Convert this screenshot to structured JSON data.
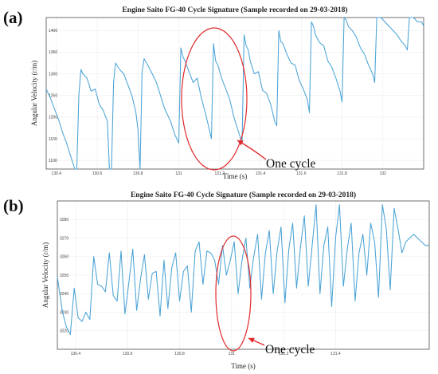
{
  "chart_data": [
    {
      "panel_label": "(a)",
      "type": "line",
      "title": "Engine Saito FG-40 Cycle Signature (Sample recorded on 29-03-2018)",
      "xlabel": "Time (s)",
      "ylabel": "Angular Velocity (r/m)",
      "xlim": [
        130.35,
        132.2
      ],
      "ylim": [
        1080,
        1430
      ],
      "xticks": [
        130.4,
        130.6,
        130.8,
        131,
        131.2,
        131.4,
        131.6,
        131.8,
        132
      ],
      "xtick_labels": [
        "130.4",
        "130.6",
        "130.8",
        "131",
        "131.2",
        "131.4",
        "131.6",
        "131.8",
        "132"
      ],
      "yticks": [
        1100,
        1150,
        1200,
        1250,
        1300,
        1350,
        1400
      ],
      "ytick_labels": [
        "1100",
        "1150",
        "1200",
        "1250",
        "1300",
        "1350",
        "1400"
      ],
      "grid": true,
      "series": [
        {
          "color": "#4aa3d6",
          "x": [
            130.35,
            130.37,
            130.39,
            130.41,
            130.43,
            130.45,
            130.47,
            130.49,
            130.5,
            130.51,
            130.52,
            130.53,
            130.55,
            130.57,
            130.59,
            130.61,
            130.63,
            130.65,
            130.66,
            130.67,
            130.68,
            130.69,
            130.71,
            130.73,
            130.75,
            130.77,
            130.79,
            130.8,
            130.81,
            130.82,
            130.83,
            130.85,
            130.87,
            130.89,
            130.91,
            130.93,
            130.96,
            130.98,
            131,
            131.01,
            131.02,
            131.03,
            131.05,
            131.07,
            131.09,
            131.11,
            131.13,
            131.15,
            131.16,
            131.17,
            131.18,
            131.19,
            131.21,
            131.23,
            131.25,
            131.27,
            131.29,
            131.31,
            131.32,
            131.33,
            131.34,
            131.35,
            131.37,
            131.39,
            131.41,
            131.43,
            131.45,
            131.47,
            131.48,
            131.49,
            131.5,
            131.51,
            131.53,
            131.55,
            131.57,
            131.59,
            131.61,
            131.63,
            131.64,
            131.65,
            131.66,
            131.67,
            131.69,
            131.71,
            131.73,
            131.75,
            131.77,
            131.79,
            131.8,
            131.81,
            131.82,
            131.83,
            131.85,
            131.87,
            131.89,
            131.91,
            131.93,
            131.95,
            131.96,
            131.97,
            131.98,
            131.99,
            132.01,
            132.03,
            132.05,
            132.07,
            132.09,
            132.11,
            132.12,
            132.13,
            132.14,
            132.15,
            132.17,
            132.19,
            132.2
          ],
          "y": [
            1265,
            1245,
            1220,
            1195,
            1165,
            1140,
            1110,
            1080,
            1080,
            1250,
            1310,
            1300,
            1290,
            1260,
            1265,
            1230,
            1215,
            1190,
            1080,
            1080,
            1280,
            1325,
            1310,
            1300,
            1275,
            1250,
            1210,
            1170,
            1080,
            1305,
            1335,
            1318,
            1300,
            1280,
            1250,
            1220,
            1190,
            1160,
            1140,
            1360,
            1340,
            1330,
            1305,
            1280,
            1290,
            1245,
            1210,
            1170,
            1150,
            1370,
            1330,
            1322,
            1290,
            1265,
            1240,
            1200,
            1170,
            1140,
            1390,
            1365,
            1355,
            1330,
            1300,
            1305,
            1262,
            1255,
            1230,
            1190,
            1180,
            1400,
            1375,
            1370,
            1345,
            1325,
            1320,
            1285,
            1265,
            1240,
            1210,
            1420,
            1410,
            1390,
            1372,
            1365,
            1330,
            1315,
            1290,
            1260,
            1235,
            1430,
            1425,
            1410,
            1400,
            1385,
            1360,
            1345,
            1320,
            1300,
            1280,
            1430,
            1430,
            1430,
            1420,
            1410,
            1400,
            1390,
            1375,
            1365,
            1355,
            1430,
            1430,
            1430,
            1420,
            1420,
            1410
          ]
        }
      ],
      "annotation": {
        "text": "One cycle"
      }
    },
    {
      "panel_label": "(b)",
      "type": "line",
      "title": "Engine Saito FG-40 Cycle Signature (Sample recorded on 29-03-2018)",
      "xlabel": "Time (s)",
      "ylabel": "Angular Velocity (r/m)",
      "xlim": [
        130.33,
        131.76
      ],
      "ylim": [
        3210,
        3290
      ],
      "xticks": [
        130.4,
        130.6,
        130.8,
        131,
        131.2,
        131.4
      ],
      "xtick_labels": [
        "130.4",
        "130.6",
        "130.8",
        "131",
        "131.2",
        "131.4"
      ],
      "yticks": [
        3220,
        3230,
        3240,
        3250,
        3260,
        3270,
        3280
      ],
      "ytick_labels": [
        "3220",
        "3230",
        "3240",
        "3250",
        "3260",
        "3270",
        "3280"
      ],
      "grid": true,
      "series": [
        {
          "color": "#4aa3d6",
          "x": [
            130.33,
            130.35,
            130.365,
            130.38,
            130.395,
            130.41,
            130.425,
            130.44,
            130.455,
            130.47,
            130.485,
            130.5,
            130.515,
            130.53,
            130.545,
            130.56,
            130.575,
            130.59,
            130.605,
            130.62,
            130.635,
            130.65,
            130.665,
            130.68,
            130.695,
            130.71,
            130.725,
            130.74,
            130.755,
            130.77,
            130.785,
            130.8,
            130.815,
            130.83,
            130.845,
            130.86,
            130.875,
            130.89,
            130.905,
            130.92,
            130.935,
            130.95,
            130.965,
            130.98,
            130.995,
            131.01,
            131.025,
            131.04,
            131.055,
            131.07,
            131.085,
            131.1,
            131.115,
            131.13,
            131.145,
            131.16,
            131.175,
            131.19,
            131.205,
            131.22,
            131.235,
            131.25,
            131.265,
            131.28,
            131.295,
            131.31,
            131.325,
            131.34,
            131.355,
            131.37,
            131.385,
            131.4,
            131.415,
            131.43,
            131.445,
            131.46,
            131.475,
            131.49,
            131.505,
            131.52,
            131.535,
            131.55,
            131.565,
            131.58,
            131.595,
            131.61,
            131.625,
            131.64,
            131.655,
            131.67,
            131.685,
            131.7,
            131.715,
            131.73,
            131.745,
            131.76
          ],
          "y": [
            3249,
            3230,
            3222,
            3218,
            3243,
            3227,
            3225,
            3230,
            3226,
            3260,
            3245,
            3244,
            3241,
            3262,
            3239,
            3236,
            3263,
            3229,
            3246,
            3264,
            3231,
            3248,
            3261,
            3237,
            3251,
            3252,
            3228,
            3258,
            3232,
            3254,
            3262,
            3236,
            3252,
            3255,
            3230,
            3263,
            3268,
            3245,
            3263,
            3262,
            3258,
            3245,
            3266,
            3250,
            3258,
            3268,
            3240,
            3258,
            3270,
            3243,
            3260,
            3272,
            3237,
            3262,
            3274,
            3240,
            3263,
            3276,
            3235,
            3264,
            3278,
            3243,
            3265,
            3282,
            3244,
            3266,
            3288,
            3240,
            3266,
            3276,
            3233,
            3270,
            3288,
            3244,
            3264,
            3278,
            3236,
            3262,
            3272,
            3250,
            3278,
            3268,
            3238,
            3288,
            3275,
            3242,
            3286,
            3275,
            3262,
            3268,
            3270,
            3272,
            3270,
            3268,
            3266,
            3266
          ]
        }
      ],
      "annotation": {
        "text": "One cycle"
      }
    }
  ]
}
